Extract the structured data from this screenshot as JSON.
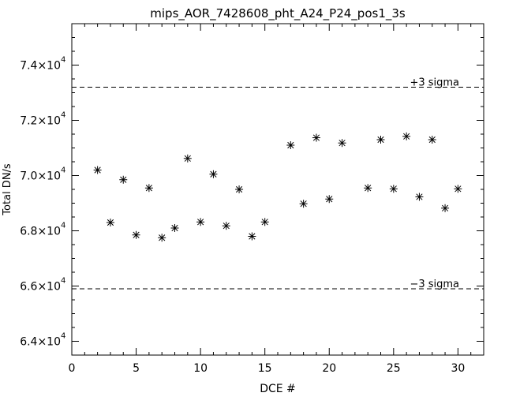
{
  "chart_data": {
    "type": "scatter",
    "title": "mips_AOR_7428608_pht_A24_P24_pos1_3s",
    "xlabel": "DCE #",
    "ylabel": "Total DN/s",
    "xlim": [
      0,
      32
    ],
    "ylim": [
      63500,
      75500
    ],
    "x_ticks": [
      0,
      5,
      10,
      15,
      20,
      25,
      30
    ],
    "x_tick_labels": [
      "0",
      "5",
      "10",
      "15",
      "20",
      "25",
      "30"
    ],
    "y_ticks": [
      64000,
      66000,
      68000,
      70000,
      72000,
      74000
    ],
    "y_tick_labels": [
      {
        "mantissa": "6.4×10",
        "exponent": "4"
      },
      {
        "mantissa": "6.6×10",
        "exponent": "4"
      },
      {
        "mantissa": "6.8×10",
        "exponent": "4"
      },
      {
        "mantissa": "7.0×10",
        "exponent": "4"
      },
      {
        "mantissa": "7.2×10",
        "exponent": "4"
      },
      {
        "mantissa": "7.4×10",
        "exponent": "4"
      }
    ],
    "marker": "asterisk",
    "points": [
      {
        "x": 2,
        "y": 70200
      },
      {
        "x": 3,
        "y": 68300
      },
      {
        "x": 4,
        "y": 69850
      },
      {
        "x": 5,
        "y": 67850
      },
      {
        "x": 6,
        "y": 69550
      },
      {
        "x": 7,
        "y": 67750
      },
      {
        "x": 8,
        "y": 68100
      },
      {
        "x": 9,
        "y": 70620
      },
      {
        "x": 10,
        "y": 68320
      },
      {
        "x": 11,
        "y": 70050
      },
      {
        "x": 12,
        "y": 68180
      },
      {
        "x": 13,
        "y": 69500
      },
      {
        "x": 14,
        "y": 67800
      },
      {
        "x": 15,
        "y": 68320
      },
      {
        "x": 17,
        "y": 71100
      },
      {
        "x": 18,
        "y": 68980
      },
      {
        "x": 19,
        "y": 71370
      },
      {
        "x": 20,
        "y": 69150
      },
      {
        "x": 21,
        "y": 71180
      },
      {
        "x": 23,
        "y": 69550
      },
      {
        "x": 24,
        "y": 71300
      },
      {
        "x": 25,
        "y": 69520
      },
      {
        "x": 26,
        "y": 71420
      },
      {
        "x": 27,
        "y": 69230
      },
      {
        "x": 28,
        "y": 71300
      },
      {
        "x": 29,
        "y": 68820
      },
      {
        "x": 30,
        "y": 69520
      }
    ],
    "reference_lines": [
      {
        "y": 73200,
        "label": "+3 sigma",
        "style": "dashed"
      },
      {
        "y": 65900,
        "label": "−3 sigma",
        "style": "dashed"
      }
    ],
    "grid": false,
    "legend": "none"
  }
}
